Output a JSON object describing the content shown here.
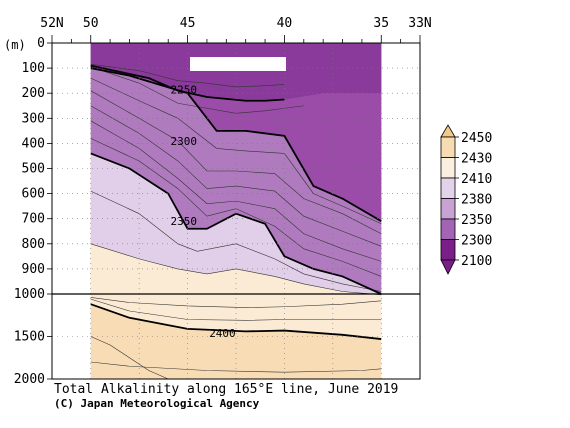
{
  "chart_data": {
    "type": "contour",
    "title": "Total Alkalinity along 165°E line, June 2019",
    "credit": "(C) Japan Meteorological Agency",
    "ylabel": "(m)",
    "x_ticks": [
      "52N",
      "50",
      "45",
      "40",
      "35",
      "33N"
    ],
    "x_range_lat": [
      52,
      33
    ],
    "data_range_lat": [
      50,
      35
    ],
    "y_ticks_upper": [
      "0",
      "100",
      "200",
      "300",
      "400",
      "500",
      "600",
      "700",
      "800",
      "900",
      "1000"
    ],
    "y_ticks_lower": [
      "1500",
      "2000"
    ],
    "y_range_m": [
      0,
      2000
    ],
    "axis_break_depth_m": 1000,
    "grid": true,
    "colorbar": {
      "levels": [
        "2450",
        "2430",
        "2410",
        "2380",
        "2350",
        "2300",
        "2100"
      ],
      "colors": [
        "#f3c98a",
        "#f7dcb2",
        "#fbefe0",
        "#e3d3ea",
        "#c8a2d2",
        "#a364b5",
        "#7a1f8a"
      ],
      "placement": "right"
    },
    "contour_labels": [
      {
        "text": "2250",
        "lat": 45.2,
        "depth_m": 185
      },
      {
        "text": "2300",
        "lat": 45.2,
        "depth_m": 390
      },
      {
        "text": "2350",
        "lat": 45.2,
        "depth_m": 710
      },
      {
        "text": "2400",
        "lat": 43.2,
        "depth_m": 1460
      }
    ],
    "bold_contours": [
      {
        "value": "2250",
        "lat": [
          50,
          47,
          45.5,
          44,
          42,
          41,
          40
        ],
        "depth_m": [
          90,
          140,
          190,
          215,
          230,
          230,
          225
        ]
      },
      {
        "value": "2300",
        "lat": [
          50,
          48,
          45,
          43.5,
          42,
          40,
          38.5,
          37,
          35
        ],
        "depth_m": [
          100,
          130,
          200,
          350,
          350,
          370,
          570,
          620,
          710
        ]
      },
      {
        "value": "2350",
        "lat": [
          50,
          48,
          46,
          45,
          44,
          42.5,
          41,
          40,
          38.5,
          37,
          35
        ],
        "depth_m": [
          440,
          500,
          600,
          740,
          740,
          680,
          720,
          850,
          900,
          930,
          1000
        ]
      },
      {
        "value": "2400",
        "lat": [
          50,
          48,
          45,
          42,
          40,
          37,
          35
        ],
        "depth_m": [
          1120,
          1280,
          1410,
          1440,
          1430,
          1480,
          1530
        ]
      }
    ],
    "thin_contours": [
      {
        "lat": [
          50,
          47.5,
          45.5,
          44,
          42.5,
          41,
          40
        ],
        "depth_m": [
          85,
          110,
          150,
          160,
          175,
          170,
          165
        ]
      },
      {
        "lat": [
          50,
          47.5,
          45.5,
          44,
          42.5,
          41,
          40,
          39
        ],
        "depth_m": [
          95,
          160,
          240,
          260,
          280,
          270,
          260,
          250
        ]
      },
      {
        "lat": [
          50,
          47.5,
          45.5,
          43.5,
          42,
          40,
          38.5,
          37,
          35
        ],
        "depth_m": [
          140,
          230,
          300,
          420,
          430,
          440,
          600,
          650,
          720
        ]
      },
      {
        "lat": [
          50,
          47.5,
          45.5,
          44,
          42.5,
          40.5,
          39,
          37,
          35
        ],
        "depth_m": [
          190,
          300,
          390,
          510,
          510,
          520,
          620,
          680,
          760
        ]
      },
      {
        "lat": [
          50,
          47.5,
          45.5,
          44,
          42.5,
          40.5,
          39,
          37,
          35
        ],
        "depth_m": [
          250,
          360,
          470,
          580,
          570,
          590,
          690,
          750,
          810
        ]
      },
      {
        "lat": [
          50,
          47.5,
          45.5,
          44,
          42.5,
          40.5,
          39,
          37,
          35
        ],
        "depth_m": [
          310,
          420,
          540,
          640,
          630,
          660,
          760,
          820,
          870
        ]
      },
      {
        "lat": [
          50,
          47.5,
          45.5,
          44,
          42.5,
          40.5,
          39,
          37,
          35
        ],
        "depth_m": [
          380,
          470,
          580,
          690,
          660,
          730,
          820,
          870,
          930
        ]
      },
      {
        "lat": [
          50,
          47.5,
          45.5,
          44.5,
          42.5,
          40.5,
          39,
          37,
          35
        ],
        "depth_m": [
          590,
          680,
          800,
          830,
          800,
          860,
          920,
          960,
          990
        ]
      },
      {
        "lat": [
          50,
          47.5,
          45.5,
          44,
          42.5,
          40.5,
          39,
          37,
          35
        ],
        "depth_m": [
          800,
          860,
          900,
          920,
          900,
          930,
          960,
          990,
          1010
        ]
      },
      {
        "lat": [
          50,
          48,
          45,
          42,
          40,
          37,
          35
        ],
        "depth_m": [
          1040,
          1100,
          1140,
          1160,
          1150,
          1120,
          1080
        ]
      },
      {
        "lat": [
          50,
          48,
          45,
          42,
          40,
          37,
          35
        ],
        "depth_m": [
          1060,
          1200,
          1300,
          1310,
          1300,
          1300,
          1300
        ]
      },
      {
        "lat": [
          50,
          49,
          48,
          47,
          46
        ],
        "depth_m": [
          1500,
          1600,
          1750,
          1900,
          2000
        ]
      },
      {
        "lat": [
          50,
          48,
          44,
          40,
          36,
          35
        ],
        "depth_m": [
          1800,
          1850,
          1900,
          1920,
          1900,
          1880
        ]
      }
    ],
    "fill_bands": {
      "surface": "#8a3a9a",
      "band_2250_2300": "#9a4ca8",
      "band_2300_2350": "#b07abf",
      "band_2350_2380": "#e1cee8",
      "band_2380_2400": "#fcebd4",
      "band_2400_2410": "#fbf0e2",
      "deep": "#f8dcb5"
    }
  }
}
